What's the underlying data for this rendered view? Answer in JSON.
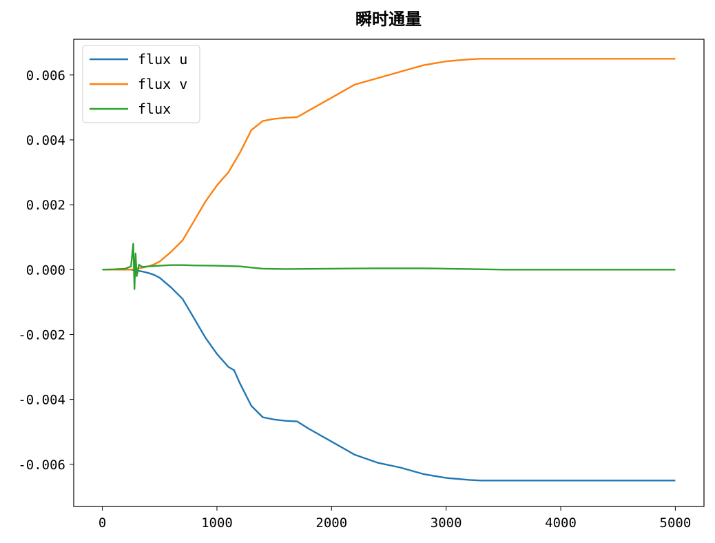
{
  "chart_data": {
    "type": "line",
    "title": "瞬时通量",
    "xlabel": "",
    "ylabel": "",
    "xlim": [
      -250,
      5250
    ],
    "ylim": [
      -0.0073,
      0.0071
    ],
    "xticks": [
      0,
      1000,
      2000,
      3000,
      4000,
      5000
    ],
    "xtick_labels": [
      "0",
      "1000",
      "2000",
      "3000",
      "4000",
      "5000"
    ],
    "yticks": [
      -0.006,
      -0.004,
      -0.002,
      0.0,
      0.002,
      0.004,
      0.006
    ],
    "ytick_labels": [
      "-0.006",
      "-0.004",
      "-0.002",
      "0.000",
      "0.002",
      "0.004",
      "0.006"
    ],
    "grid": false,
    "legend_position": "top-left",
    "series": [
      {
        "name": "flux u",
        "color": "#1f77b4",
        "x": [
          0,
          250,
          300,
          350,
          400,
          450,
          500,
          600,
          700,
          800,
          900,
          1000,
          1100,
          1150,
          1200,
          1300,
          1400,
          1500,
          1600,
          1700,
          1800,
          2000,
          2200,
          2400,
          2600,
          2800,
          3000,
          3100,
          3200,
          3300,
          3500,
          4000,
          4500,
          5000
        ],
        "y": [
          0.0,
          0.0,
          -3e-05,
          -6e-05,
          -0.0001,
          -0.00016,
          -0.00025,
          -0.00055,
          -0.0009,
          -0.0015,
          -0.0021,
          -0.0026,
          -0.003,
          -0.0031,
          -0.0035,
          -0.0042,
          -0.00455,
          -0.00462,
          -0.00466,
          -0.00468,
          -0.0049,
          -0.0053,
          -0.0057,
          -0.00595,
          -0.0061,
          -0.0063,
          -0.00642,
          -0.00645,
          -0.00648,
          -0.0065,
          -0.0065,
          -0.0065,
          -0.0065,
          -0.0065
        ]
      },
      {
        "name": "flux v",
        "color": "#ff7f0e",
        "x": [
          0,
          250,
          300,
          350,
          400,
          450,
          500,
          600,
          700,
          800,
          900,
          1000,
          1100,
          1150,
          1200,
          1300,
          1400,
          1500,
          1600,
          1700,
          1800,
          2000,
          2200,
          2400,
          2600,
          2800,
          3000,
          3100,
          3200,
          3300,
          3500,
          4000,
          4500,
          5000
        ],
        "y": [
          0.0,
          0.0,
          3e-05,
          6e-05,
          0.0001,
          0.00016,
          0.00025,
          0.00055,
          0.0009,
          0.0015,
          0.0021,
          0.0026,
          0.003,
          0.0033,
          0.0036,
          0.0043,
          0.00458,
          0.00465,
          0.00468,
          0.0047,
          0.0049,
          0.0053,
          0.0057,
          0.0059,
          0.0061,
          0.0063,
          0.00642,
          0.00645,
          0.00648,
          0.0065,
          0.0065,
          0.0065,
          0.0065,
          0.0065
        ]
      },
      {
        "name": "flux",
        "color": "#2ca02c",
        "x": [
          0,
          100,
          200,
          250,
          270,
          280,
          290,
          300,
          320,
          350,
          400,
          500,
          600,
          700,
          800,
          1000,
          1200,
          1400,
          1600,
          2000,
          2400,
          2600,
          2800,
          3000,
          3200,
          3500,
          4000,
          4500,
          5000
        ],
        "y": [
          0.0,
          1e-05,
          3e-05,
          0.0001,
          0.0008,
          -0.0006,
          0.0005,
          -0.0002,
          0.00015,
          8e-05,
          0.0001,
          0.00012,
          0.00014,
          0.00014,
          0.00013,
          0.00012,
          0.0001,
          3e-05,
          2e-05,
          3e-05,
          4e-05,
          4e-05,
          4e-05,
          3e-05,
          2e-05,
          0.0,
          0.0,
          0.0,
          0.0
        ]
      }
    ]
  }
}
